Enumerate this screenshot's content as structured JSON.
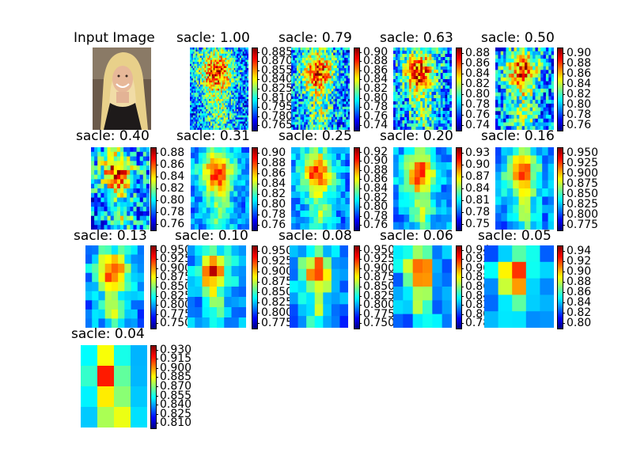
{
  "figure": {
    "background": "#ffffff",
    "colormap": [
      "#00007f",
      "#0000ff",
      "#007fff",
      "#00ffff",
      "#7fff7f",
      "#ffff00",
      "#ff7f00",
      "#ff0000",
      "#7f0000"
    ]
  },
  "chart_data": [
    {
      "type": "image",
      "title": "Input Image",
      "subject": "portrait photo of a smiling blonde woman in dark clothing"
    },
    {
      "type": "heatmap",
      "title": "sacle: 1.00",
      "colorbar_ticks": [
        "0.885",
        "0.870",
        "0.855",
        "0.840",
        "0.825",
        "0.810",
        "0.795",
        "0.780",
        "0.765"
      ]
    },
    {
      "type": "heatmap",
      "title": "sacle: 0.79",
      "colorbar_ticks": [
        "0.90",
        "0.88",
        "0.86",
        "0.84",
        "0.82",
        "0.80",
        "0.78",
        "0.76",
        "0.74"
      ]
    },
    {
      "type": "heatmap",
      "title": "sacle: 0.63",
      "colorbar_ticks": [
        "0.88",
        "0.86",
        "0.84",
        "0.82",
        "0.80",
        "0.78",
        "0.76",
        "0.74"
      ]
    },
    {
      "type": "heatmap",
      "title": "sacle: 0.50",
      "colorbar_ticks": [
        "0.90",
        "0.88",
        "0.86",
        "0.84",
        "0.82",
        "0.80",
        "0.78",
        "0.76"
      ]
    },
    {
      "type": "heatmap",
      "title": "sacle: 0.40",
      "colorbar_ticks": [
        "0.88",
        "0.86",
        "0.84",
        "0.82",
        "0.80",
        "0.78",
        "0.76"
      ]
    },
    {
      "type": "heatmap",
      "title": "sacle: 0.31",
      "colorbar_ticks": [
        "0.90",
        "0.88",
        "0.86",
        "0.84",
        "0.82",
        "0.80",
        "0.78",
        "0.76"
      ]
    },
    {
      "type": "heatmap",
      "title": "sacle: 0.25",
      "colorbar_ticks": [
        "0.92",
        "0.90",
        "0.88",
        "0.86",
        "0.84",
        "0.82",
        "0.80",
        "0.78",
        "0.76"
      ]
    },
    {
      "type": "heatmap",
      "title": "sacle: 0.20",
      "colorbar_ticks": [
        "0.93",
        "0.90",
        "0.87",
        "0.84",
        "0.81",
        "0.78",
        "0.75"
      ]
    },
    {
      "type": "heatmap",
      "title": "sacle: 0.16",
      "colorbar_ticks": [
        "0.950",
        "0.925",
        "0.900",
        "0.875",
        "0.850",
        "0.825",
        "0.800",
        "0.775"
      ]
    },
    {
      "type": "heatmap",
      "title": "sacle: 0.13",
      "colorbar_ticks": [
        "0.950",
        "0.925",
        "0.900",
        "0.875",
        "0.850",
        "0.825",
        "0.800",
        "0.775",
        "0.750"
      ]
    },
    {
      "type": "heatmap",
      "title": "sacle: 0.10",
      "colorbar_ticks": [
        "0.950",
        "0.925",
        "0.900",
        "0.875",
        "0.850",
        "0.825",
        "0.800",
        "0.775"
      ]
    },
    {
      "type": "heatmap",
      "title": "sacle: 0.08",
      "colorbar_ticks": [
        "0.950",
        "0.925",
        "0.900",
        "0.875",
        "0.850",
        "0.825",
        "0.800",
        "0.775",
        "0.750"
      ]
    },
    {
      "type": "heatmap",
      "title": "sacle: 0.06",
      "colorbar_ticks": [
        "0.94",
        "0.92",
        "0.90",
        "0.88",
        "0.86",
        "0.84",
        "0.82",
        "0.80",
        "0.78"
      ]
    },
    {
      "type": "heatmap",
      "title": "sacle: 0.05",
      "colorbar_ticks": [
        "0.94",
        "0.92",
        "0.90",
        "0.88",
        "0.86",
        "0.84",
        "0.82",
        "0.80"
      ]
    },
    {
      "type": "heatmap",
      "title": "sacle: 0.04",
      "colorbar_ticks": [
        "0.930",
        "0.915",
        "0.900",
        "0.885",
        "0.870",
        "0.855",
        "0.840",
        "0.825",
        "0.810"
      ]
    }
  ]
}
